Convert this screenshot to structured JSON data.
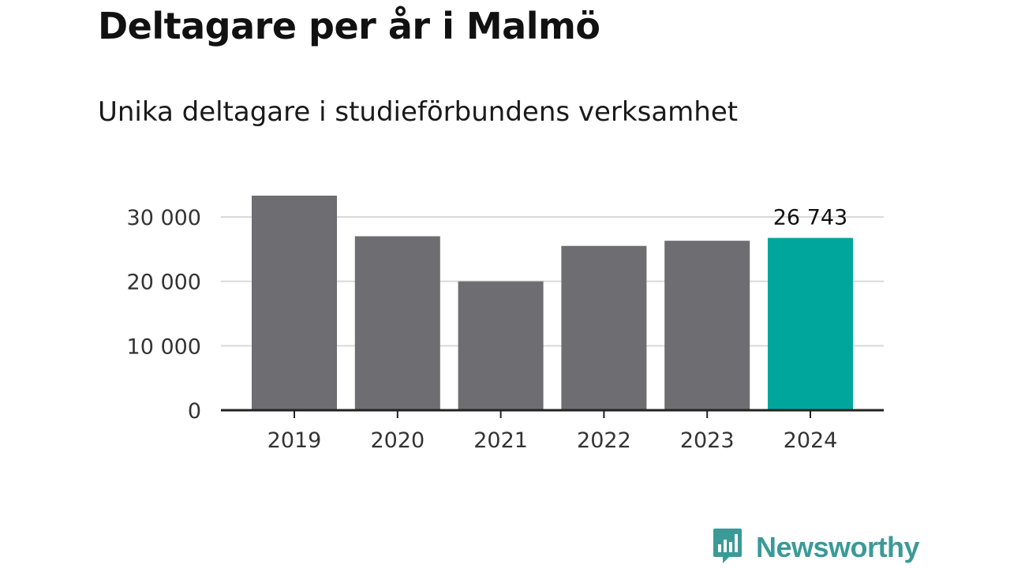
{
  "title": "Deltagare per år i Malmö",
  "subtitle": "Unika deltagare i studieförbundens verksamhet",
  "brand": {
    "name": "Newsworthy",
    "icon": "bar-chart-speech-icon",
    "color": "#3b9a97"
  },
  "colors": {
    "bar": "#6e6d72",
    "highlight": "#00a69c",
    "grid": "#d9d9d9",
    "axis": "#222222"
  },
  "chart_data": {
    "type": "bar",
    "categories": [
      "2019",
      "2020",
      "2021",
      "2022",
      "2023",
      "2024"
    ],
    "values": [
      33300,
      27000,
      20000,
      25500,
      26300,
      26743
    ],
    "highlight_index": 5,
    "data_labels": [
      {
        "index": 5,
        "text": "26 743"
      }
    ],
    "yticks": [
      0,
      10000,
      20000,
      30000
    ],
    "ytick_labels": [
      "0",
      "10 000",
      "20 000",
      "30 000"
    ],
    "ylim": [
      0,
      33300
    ],
    "grid": "horizontal"
  }
}
